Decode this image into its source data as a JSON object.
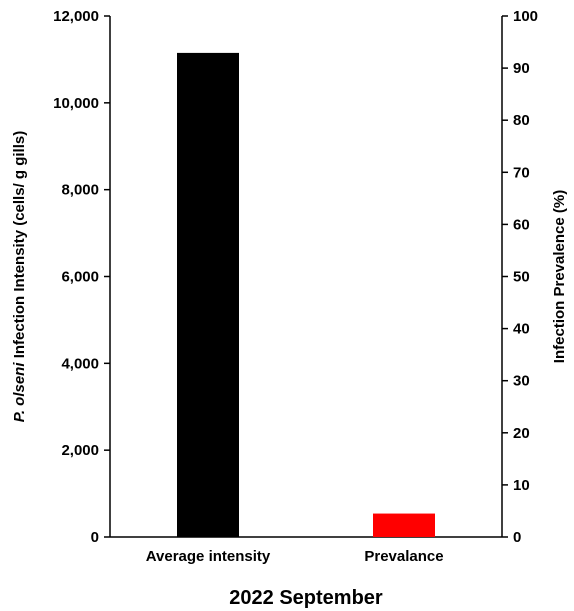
{
  "chart_data": {
    "type": "bar",
    "categories": [
      "Average intensity",
      "Prevalance"
    ],
    "series": [
      {
        "axis": "left",
        "category": "Average intensity",
        "value": 11150,
        "color": "#000000"
      },
      {
        "axis": "right",
        "category": "Prevalance",
        "value": 4.5,
        "color": "#ff0000"
      }
    ],
    "xlabel": "2022 September",
    "ylabel_left": {
      "italic": "P. olseni",
      "rest": " Infection Intensity (cells/ g gills)"
    },
    "ylabel_right": "Infection Prevalence (%)",
    "ylim_left": [
      0,
      12000
    ],
    "ylim_right": [
      0,
      100
    ],
    "yticks_left": [
      "0",
      "2,000",
      "4,000",
      "6,000",
      "8,000",
      "10,000",
      "12,000"
    ],
    "yticks_right": [
      "0",
      "10",
      "20",
      "30",
      "40",
      "50",
      "60",
      "70",
      "80",
      "90",
      "100"
    ],
    "grid": false
  }
}
